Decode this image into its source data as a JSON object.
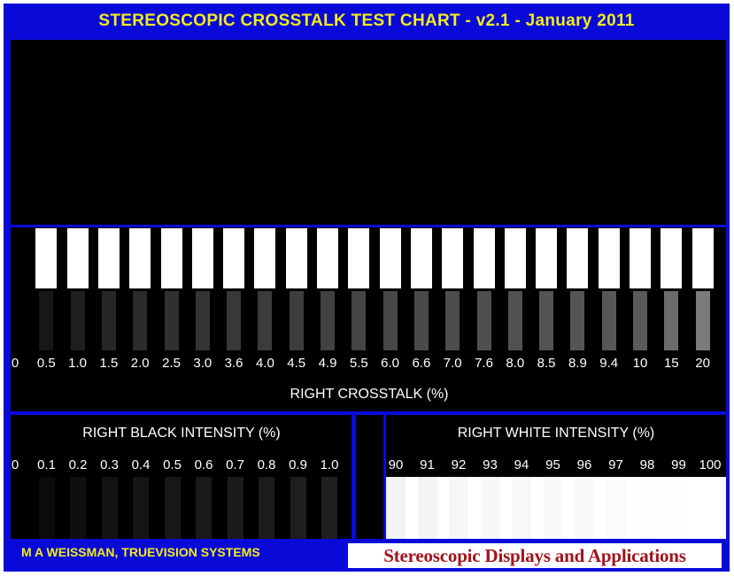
{
  "header": {
    "title": "STEREOSCOPIC CROSSTALK TEST CHART  -  v2.1  -  January 2011"
  },
  "crosstalk": {
    "caption": "RIGHT CROSSTALK (%)",
    "labels": [
      "0",
      "0.5",
      "1.0",
      "1.5",
      "2.0",
      "2.5",
      "3.0",
      "3.6",
      "4.0",
      "4.5",
      "4.9",
      "5.5",
      "6.0",
      "6.6",
      "7.0",
      "7.6",
      "8.0",
      "8.5",
      "8.9",
      "9.4",
      "10",
      "15",
      "20"
    ]
  },
  "black_intensity": {
    "caption": "RIGHT BLACK INTENSITY (%)",
    "labels": [
      "0",
      "0.1",
      "0.2",
      "0.3",
      "0.4",
      "0.5",
      "0.6",
      "0.7",
      "0.8",
      "0.9",
      "1.0"
    ]
  },
  "white_intensity": {
    "caption": "RIGHT WHITE INTENSITY (%)",
    "labels": [
      "90",
      "91",
      "92",
      "93",
      "94",
      "95",
      "96",
      "97",
      "98",
      "99",
      "100"
    ]
  },
  "footer": {
    "author": "M A WEISSMAN, TRUEVISION SYSTEMS",
    "publisher": "Stereoscopic Displays and Applications"
  },
  "colors": {
    "frame": "#0a0ad8",
    "title": "#f2ec1a",
    "publisher_text": "#a0141e"
  }
}
